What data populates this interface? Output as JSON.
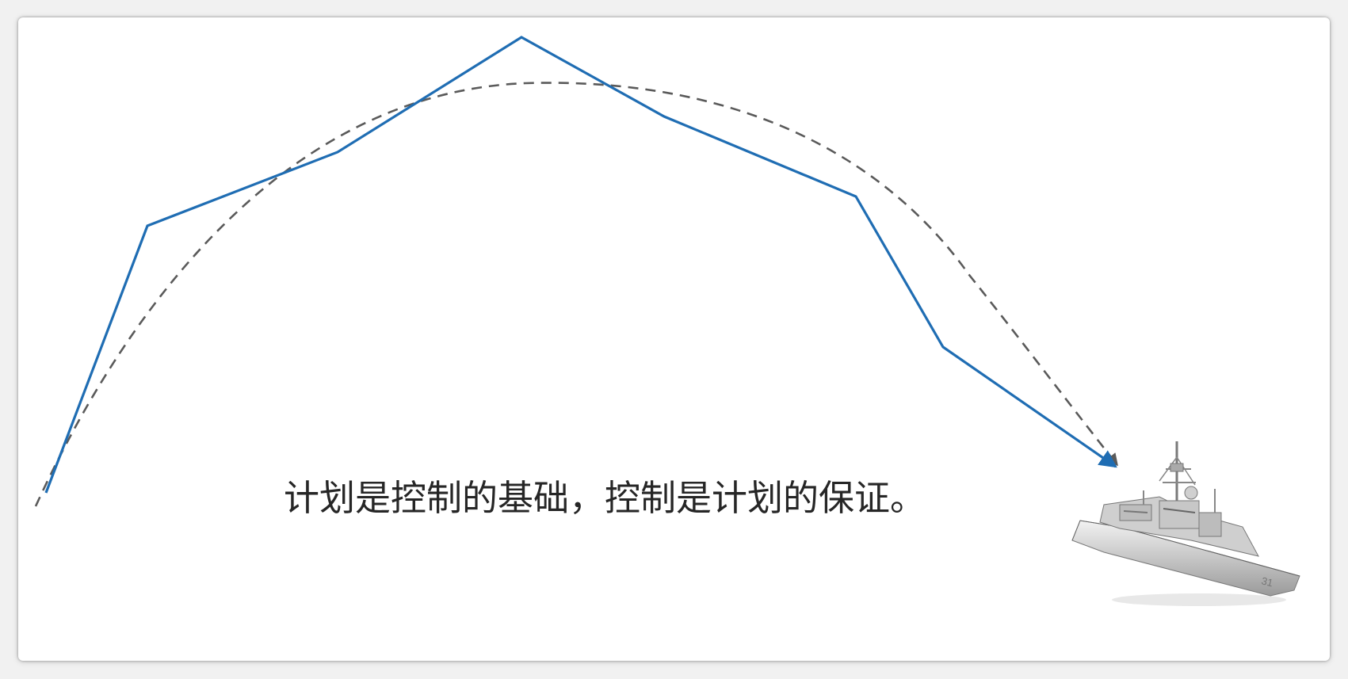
{
  "caption": "计划是控制的基础，控制是计划的保证。",
  "icons": {
    "ship": "warship-icon"
  },
  "colors": {
    "actual_path": "#1f6db3",
    "planned_path": "#5a5a5a",
    "text": "#262626",
    "background": "#ffffff"
  }
}
